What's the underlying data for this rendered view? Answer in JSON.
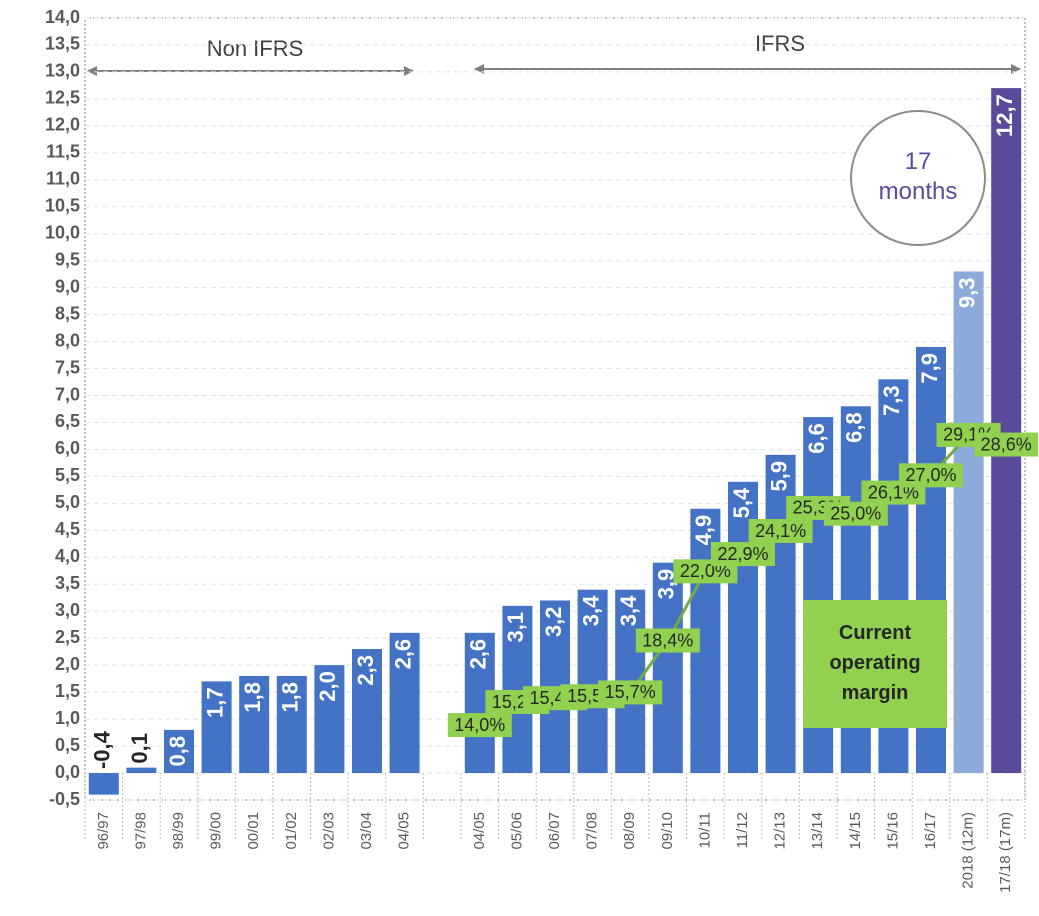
{
  "chart_data": {
    "type": "bar",
    "categories": [
      "96/97",
      "97/98",
      "98/99",
      "99/00",
      "00/01",
      "01/02",
      "02/03",
      "03/04",
      "04/05",
      null,
      "04/05",
      "05/06",
      "06/07",
      "07/08",
      "08/09",
      "09/10",
      "10/11",
      "11/12",
      "12/13",
      "13/14",
      "14/15",
      "15/16",
      "16/17",
      "2018 (12m)",
      "17/18 (17m)"
    ],
    "series": [
      {
        "type": "bar",
        "colors": [
          "#4472c4",
          "#4472c4",
          "#4472c4",
          "#4472c4",
          "#4472c4",
          "#4472c4",
          "#4472c4",
          "#4472c4",
          "#4472c4",
          null,
          "#4472c4",
          "#4472c4",
          "#4472c4",
          "#4472c4",
          "#4472c4",
          "#4472c4",
          "#4472c4",
          "#4472c4",
          "#4472c4",
          "#4472c4",
          "#4472c4",
          "#4472c4",
          "#4472c4",
          "#8eaadb",
          "#5b4a9b"
        ],
        "values": [
          -0.4,
          0.1,
          0.8,
          1.7,
          1.8,
          1.8,
          2.0,
          2.3,
          2.6,
          null,
          2.6,
          3.1,
          3.2,
          3.4,
          3.4,
          3.9,
          4.9,
          5.4,
          5.9,
          6.6,
          6.8,
          7.3,
          7.9,
          9.3,
          12.7
        ],
        "value_labels": [
          "-0,4",
          "0,1",
          "0,8",
          "1,7",
          "1,8",
          "1,8",
          "2,0",
          "2,3",
          "2,6",
          null,
          "2,6",
          "3,1",
          "3,2",
          "3,4",
          "3,4",
          "3,9",
          "4,9",
          "5,4",
          "5,9",
          "6,6",
          "6,8",
          "7,3",
          "7,9",
          "9,3",
          "12,7"
        ]
      },
      {
        "type": "line",
        "name": "Current operating margin",
        "axis": "y2",
        "color": "#70ad47",
        "label_color": "#92d050",
        "values": [
          null,
          null,
          null,
          null,
          null,
          null,
          null,
          null,
          null,
          null,
          14.0,
          15.2,
          15.4,
          15.5,
          15.7,
          18.4,
          22.0,
          22.9,
          24.1,
          25.3,
          25.0,
          26.1,
          27.0,
          29.1,
          28.6
        ],
        "value_labels": [
          null,
          null,
          null,
          null,
          null,
          null,
          null,
          null,
          null,
          null,
          "14,0%",
          "15,2%",
          "15,4%",
          "15,5%",
          "15,7%",
          "18,4%",
          "22,0%",
          "22,9%",
          "24,1%",
          "25,3%",
          "25,0%",
          "26,1%",
          "27,0%",
          "29,1%",
          "28,6%"
        ]
      }
    ],
    "ylim": [
      -0.5,
      14.0
    ],
    "y2lim": [
      10.1,
      50.8
    ],
    "yticks": [
      {
        "value": -0.5,
        "label": "-0,5"
      },
      {
        "value": 0,
        "label": "0,0"
      },
      {
        "value": 0.5,
        "label": "0,5"
      },
      {
        "value": 1,
        "label": "1,0"
      },
      {
        "value": 1.5,
        "label": "1,5"
      },
      {
        "value": 2,
        "label": "2,0"
      },
      {
        "value": 2.5,
        "label": "2,5"
      },
      {
        "value": 3,
        "label": "3,0"
      },
      {
        "value": 3.5,
        "label": "3,5"
      },
      {
        "value": 4,
        "label": "4,0"
      },
      {
        "value": 4.5,
        "label": "4,5"
      },
      {
        "value": 5,
        "label": "5,0"
      },
      {
        "value": 5.5,
        "label": "5,5"
      },
      {
        "value": 6,
        "label": "6,0"
      },
      {
        "value": 6.5,
        "label": "6,5"
      },
      {
        "value": 7,
        "label": "7,0"
      },
      {
        "value": 7.5,
        "label": "7,5"
      },
      {
        "value": 8,
        "label": "8,0"
      },
      {
        "value": 8.5,
        "label": "8,5"
      },
      {
        "value": 9,
        "label": "9,0"
      },
      {
        "value": 9.5,
        "label": "9,5"
      },
      {
        "value": 10,
        "label": "10,0"
      },
      {
        "value": 10.5,
        "label": "10,5"
      },
      {
        "value": 11,
        "label": "11,0"
      },
      {
        "value": 11.5,
        "label": "11,5"
      },
      {
        "value": 12,
        "label": "12,0"
      },
      {
        "value": 12.5,
        "label": "12,5"
      },
      {
        "value": 13,
        "label": "13,0"
      },
      {
        "value": 13.5,
        "label": "13,5"
      },
      {
        "value": 14,
        "label": "14,0"
      }
    ],
    "grid": true,
    "annotations": {
      "non_ifrs": "Non IFRS",
      "ifrs": "IFRS",
      "circle": "17 months"
    }
  }
}
